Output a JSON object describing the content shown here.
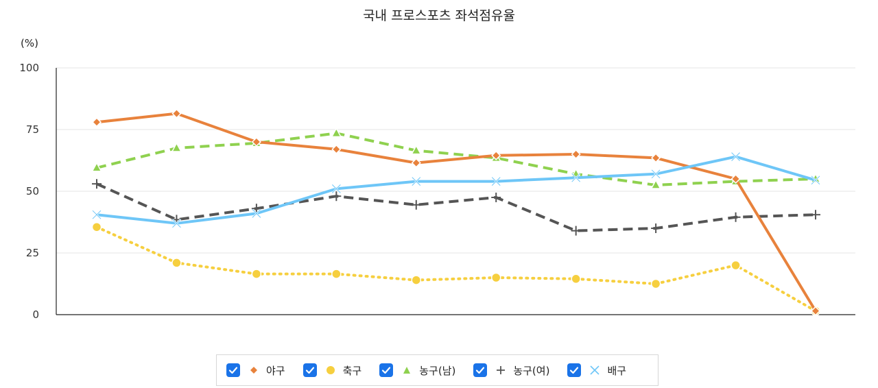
{
  "chart_data": {
    "type": "line",
    "title": "국내 프로스포츠 좌석점유율",
    "unit_label": "(%)",
    "ylim": [
      0,
      100
    ],
    "yticks": [
      0,
      25,
      50,
      75,
      100
    ],
    "x": [
      1,
      2,
      3,
      4,
      5,
      6,
      7,
      8,
      9,
      10
    ],
    "series": [
      {
        "key": "baseball",
        "name": "야구",
        "color": "#e8823c",
        "marker": "diamond",
        "dash": "solid",
        "width": 4,
        "values": [
          78,
          81.5,
          70,
          67,
          61.5,
          64.5,
          65,
          63.5,
          55,
          1.5
        ]
      },
      {
        "key": "soccer",
        "name": "축구",
        "color": "#f6cf3f",
        "marker": "circle",
        "dash": "dot",
        "width": 4,
        "values": [
          35.5,
          21,
          16.5,
          16.5,
          14,
          15,
          14.5,
          12.5,
          20,
          1.5
        ]
      },
      {
        "key": "bball_m",
        "name": "농구(남)",
        "color": "#8fd14f",
        "marker": "triangle",
        "dash": "dash",
        "width": 4,
        "values": [
          59.5,
          67.5,
          69.5,
          73.5,
          66.5,
          63.5,
          57,
          52.5,
          54,
          55
        ]
      },
      {
        "key": "bball_w",
        "name": "농구(여)",
        "color": "#555555",
        "marker": "plus",
        "dash": "dash",
        "width": 4,
        "values": [
          53,
          38.5,
          43,
          48,
          44.5,
          47.5,
          34,
          35,
          39.5,
          40.5
        ]
      },
      {
        "key": "volley",
        "name": "배구",
        "color": "#6ec6f7",
        "marker": "x",
        "dash": "solid",
        "width": 4,
        "values": [
          40.5,
          37,
          41,
          51,
          54,
          54,
          55.5,
          57,
          64,
          54.5
        ]
      }
    ]
  }
}
